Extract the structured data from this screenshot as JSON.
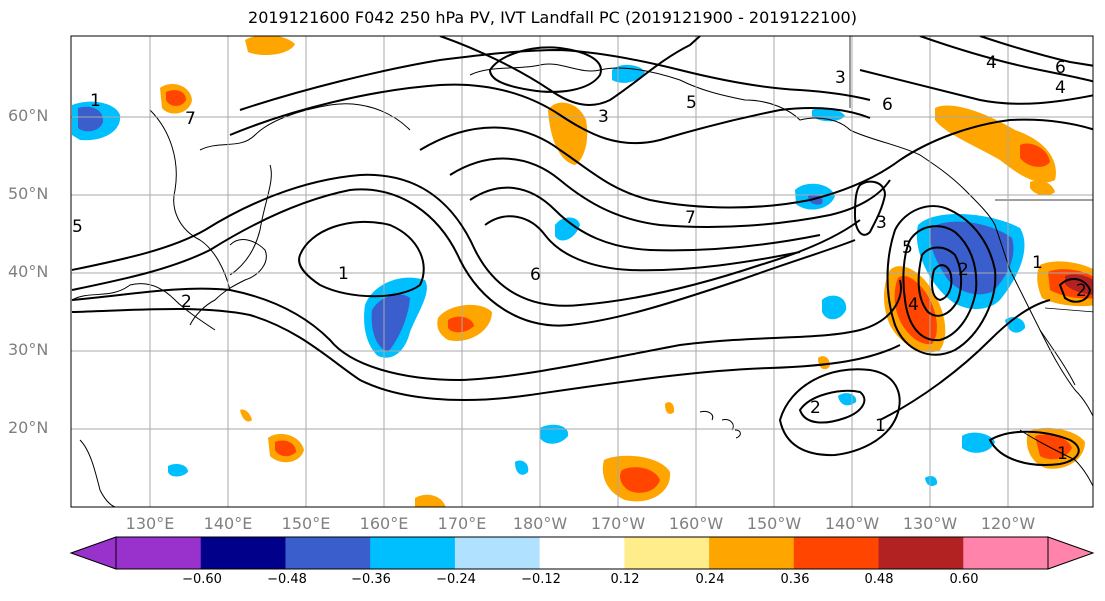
{
  "title": "2019121600 F042 250 hPa PV, IVT Landfall PC (2019121900 - 2019122100)",
  "lat_labels": [
    "60°N",
    "50°N",
    "40°N",
    "30°N",
    "20°N"
  ],
  "lon_labels": [
    "130°E",
    "140°E",
    "150°E",
    "160°E",
    "170°E",
    "180°W",
    "170°W",
    "160°W",
    "150°W",
    "140°W",
    "130°W",
    "120°W"
  ],
  "contour_labels": [
    "1",
    "2",
    "3",
    "4",
    "5",
    "6",
    "7",
    "1",
    "2",
    "3",
    "4",
    "5",
    "6",
    "7",
    "3",
    "6",
    "5",
    "4",
    "2",
    "1",
    "1",
    "2",
    "1"
  ],
  "colorbar": {
    "ticks": [
      "−0.60",
      "−0.48",
      "−0.36",
      "−0.24",
      "−0.12",
      "0.12",
      "0.24",
      "0.36",
      "0.48",
      "0.60"
    ],
    "colors": [
      "#9932cc",
      "#00008b",
      "#3a5fcd",
      "#00bfff",
      "#b0e2ff",
      "#ffffff",
      "#ffec8b",
      "#ffa500",
      "#ff4500",
      "#b22222",
      "#ff83aa"
    ]
  },
  "colors": {
    "neg_strong": "#3a5fcd",
    "neg_mid": "#00bfff",
    "neg_weak": "#b0e2ff",
    "pos_weak": "#ffec8b",
    "pos_mid": "#ffa500",
    "pos_strong": "#ff4500",
    "pos_dark": "#b22222"
  }
}
